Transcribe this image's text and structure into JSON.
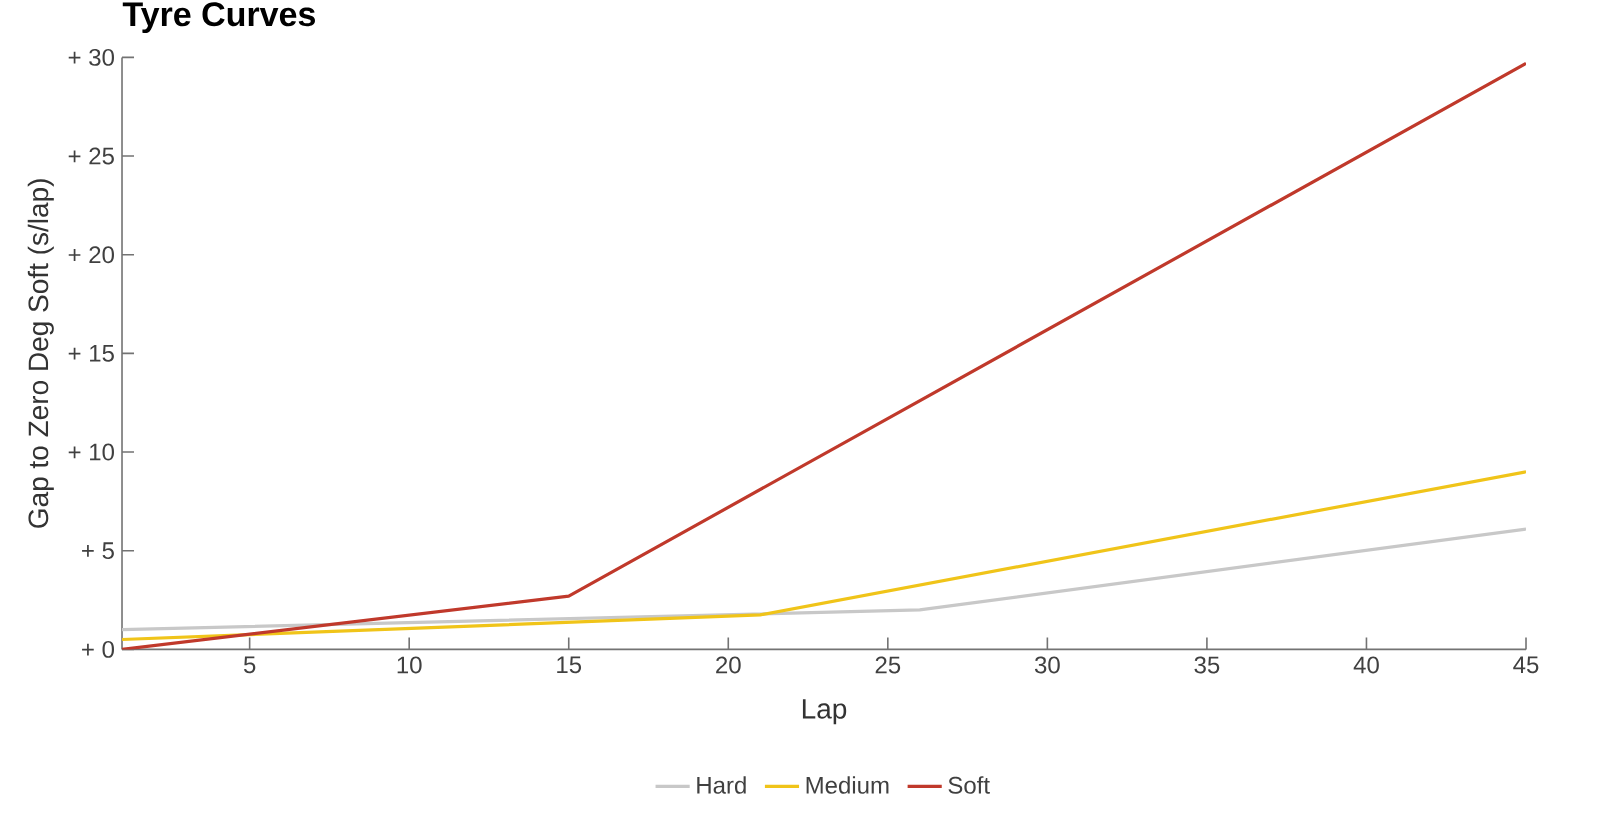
{
  "chart_data": {
    "type": "line",
    "title": "Tyre Curves",
    "xlabel": "Lap",
    "ylabel": "Gap to Zero Deg Soft (s/lap)",
    "xlim": [
      1,
      45
    ],
    "xticks": [
      5,
      10,
      15,
      20,
      25,
      30,
      35,
      40,
      45
    ],
    "ylim": [
      0,
      30
    ],
    "yticks": [
      {
        "value": 0,
        "label": "+ 0"
      },
      {
        "value": 5,
        "label": "+ 5"
      },
      {
        "value": 10,
        "label": "+ 10"
      },
      {
        "value": 15,
        "label": "+ 15"
      },
      {
        "value": 20,
        "label": "+ 20"
      },
      {
        "value": 25,
        "label": "+ 25"
      },
      {
        "value": 30,
        "label": "+ 30"
      }
    ],
    "legend": "bottom",
    "series": [
      {
        "name": "Hard",
        "color": "#c8c8c8",
        "x": [
          1,
          26,
          45
        ],
        "values": [
          1.0,
          2.0,
          6.1
        ]
      },
      {
        "name": "Medium",
        "color": "#f0c419",
        "x": [
          1,
          21,
          45
        ],
        "values": [
          0.5,
          1.75,
          9.0
        ]
      },
      {
        "name": "Soft",
        "color": "#c0392b",
        "x": [
          1,
          15,
          45
        ],
        "values": [
          0,
          2.7,
          29.7
        ]
      }
    ]
  }
}
